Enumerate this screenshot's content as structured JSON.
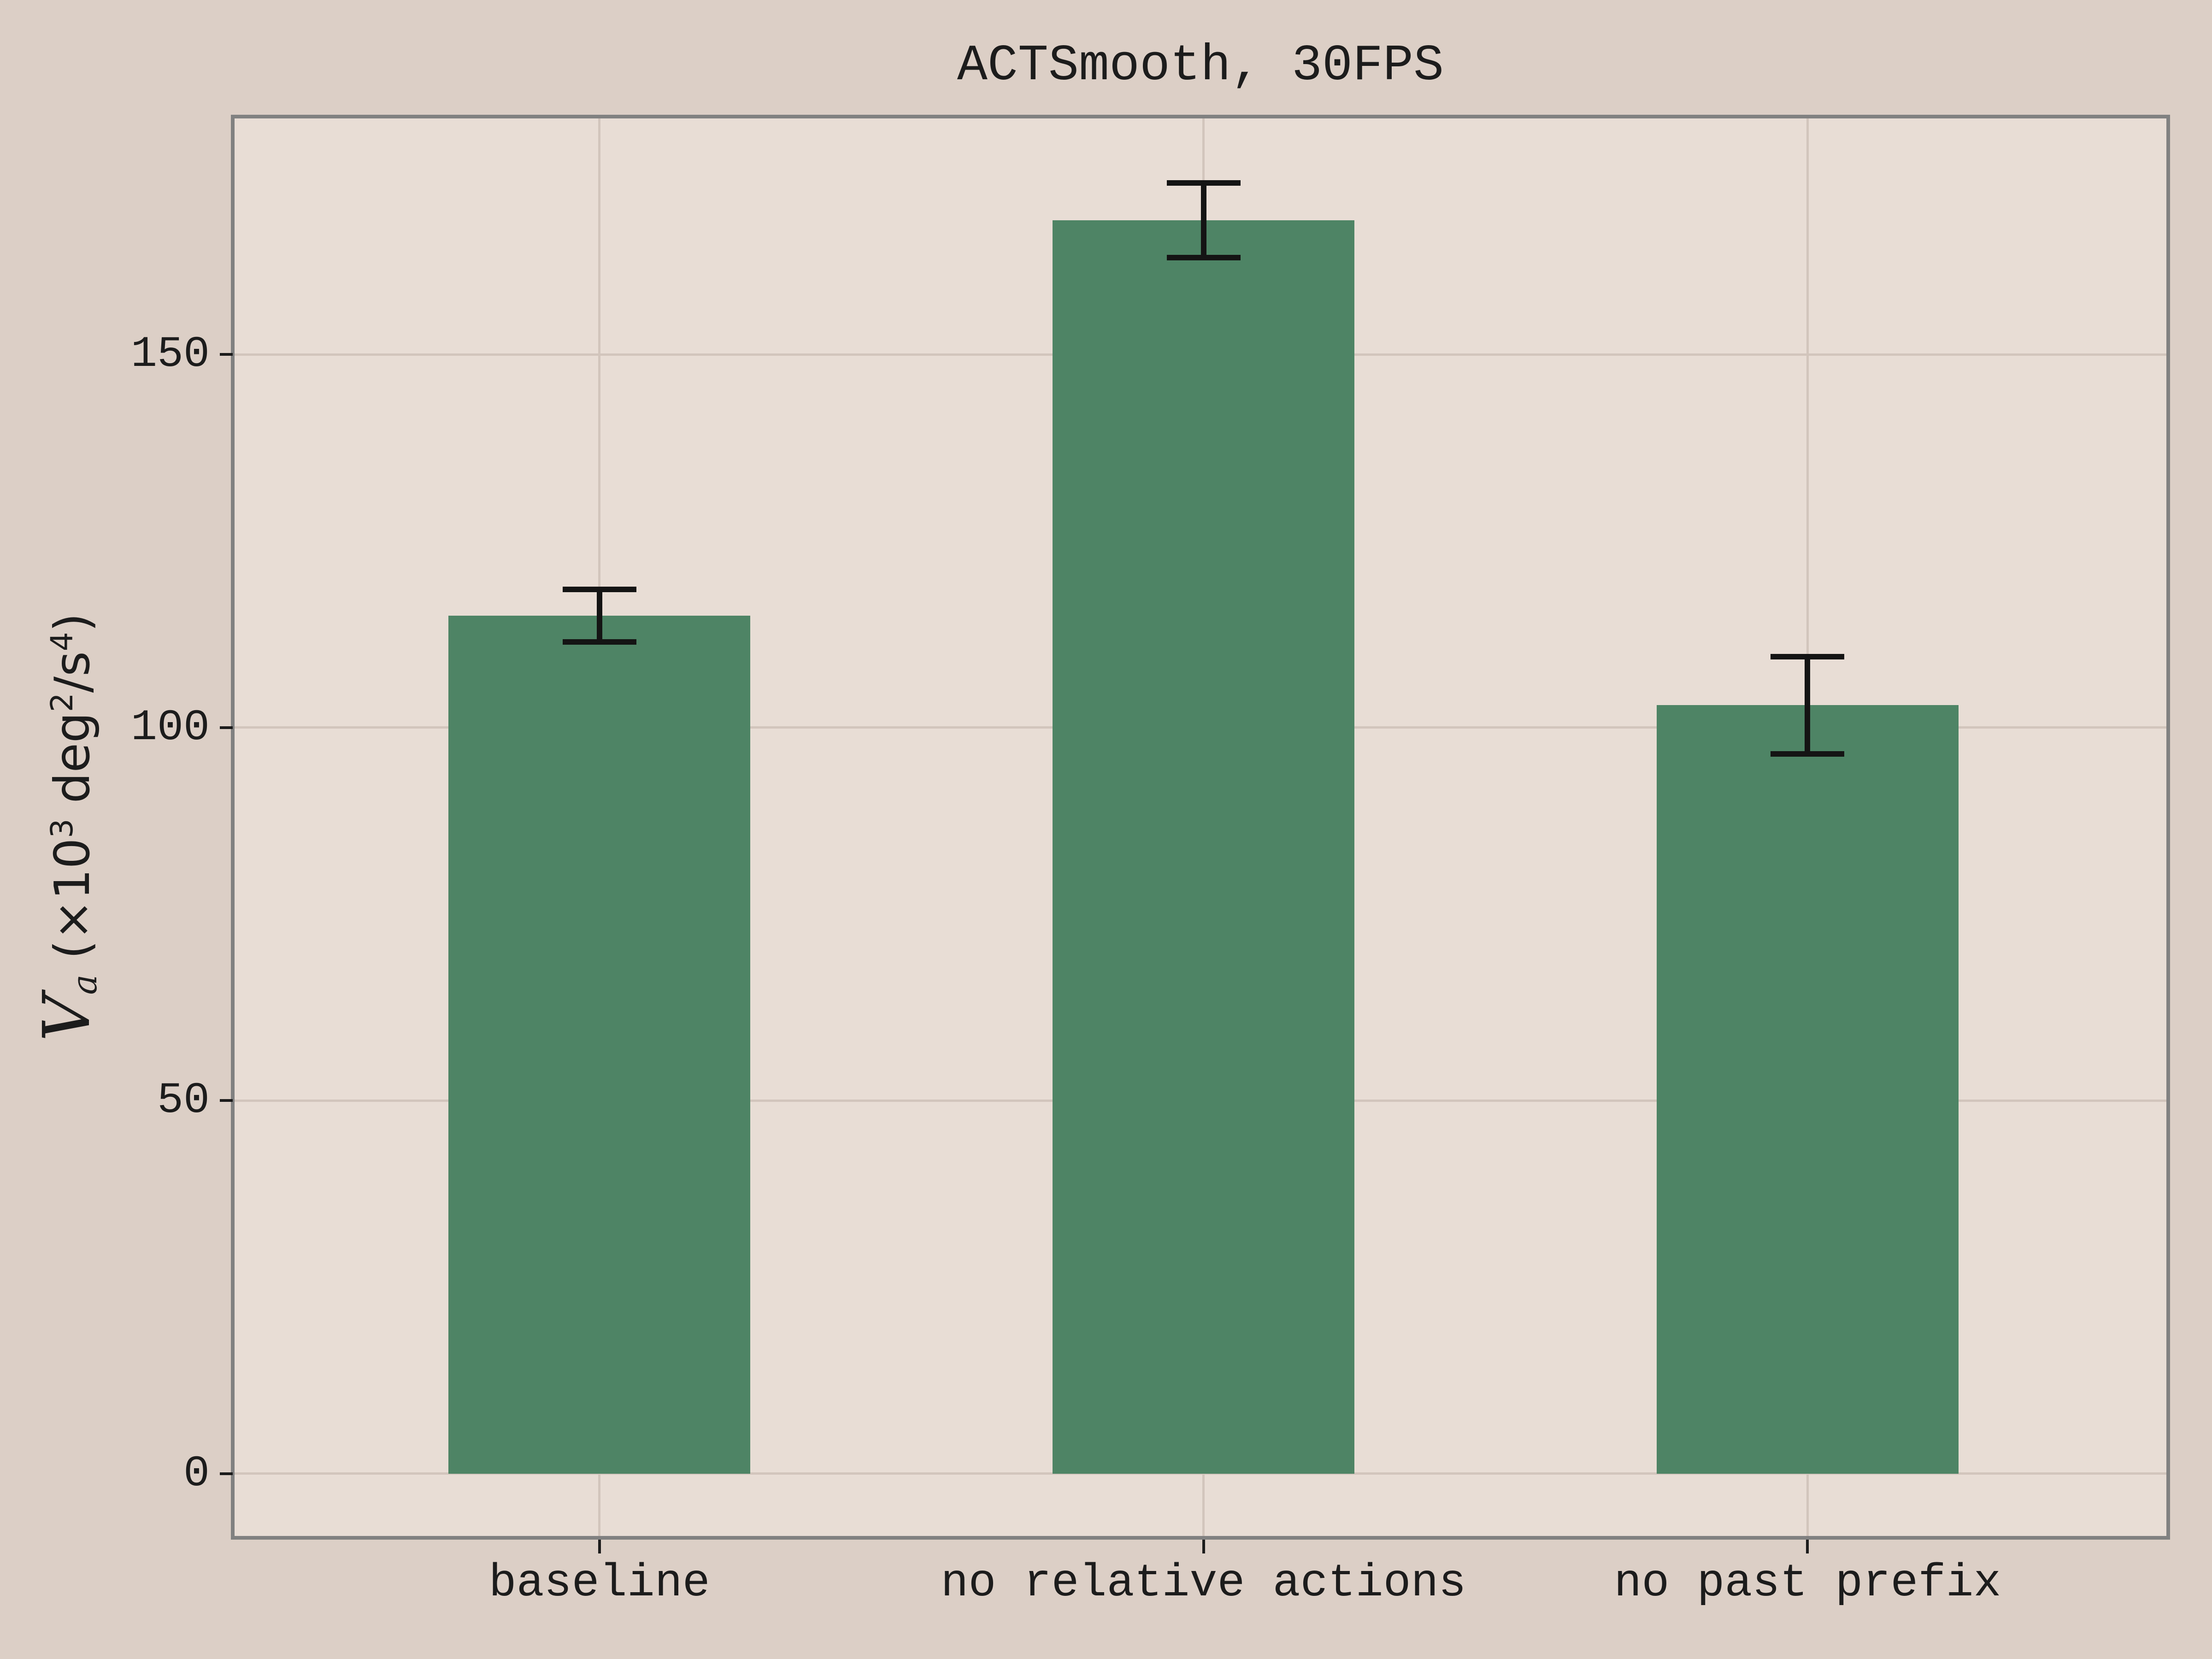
{
  "figure": {
    "background_color": "#dccfc6",
    "plot_background_color": "#e8ddd5",
    "spine_color": "#818181",
    "grid_color": "#d2c5bc",
    "text_color": "#1c1c1c"
  },
  "chart_data": {
    "type": "bar",
    "title": "ACTSmooth, 30FPS",
    "categories": [
      "baseline",
      "no relative actions",
      "no past prefix"
    ],
    "values": [
      115,
      168,
      103
    ],
    "error_bars": [
      3.5,
      5,
      6.5
    ],
    "bar_color": "#4e8465",
    "errorbar_color": "#141414",
    "ylabel": "𝒱ₐ (×10³ deg²/s⁴)",
    "ylabel_parts": {
      "var": "V",
      "sub": "a",
      "prefix": " (×10",
      "sup1": "3",
      "mid": " deg",
      "sup2": "2",
      "slash": "/s",
      "sup3": "4",
      "close": ")"
    },
    "xlabel": "",
    "yticks": [
      0,
      50,
      100,
      150
    ],
    "ylim": [
      -8.6,
      181.9
    ],
    "xlim": [
      -0.607,
      2.597
    ],
    "bar_width": 0.5,
    "grid": true,
    "legend": null
  }
}
